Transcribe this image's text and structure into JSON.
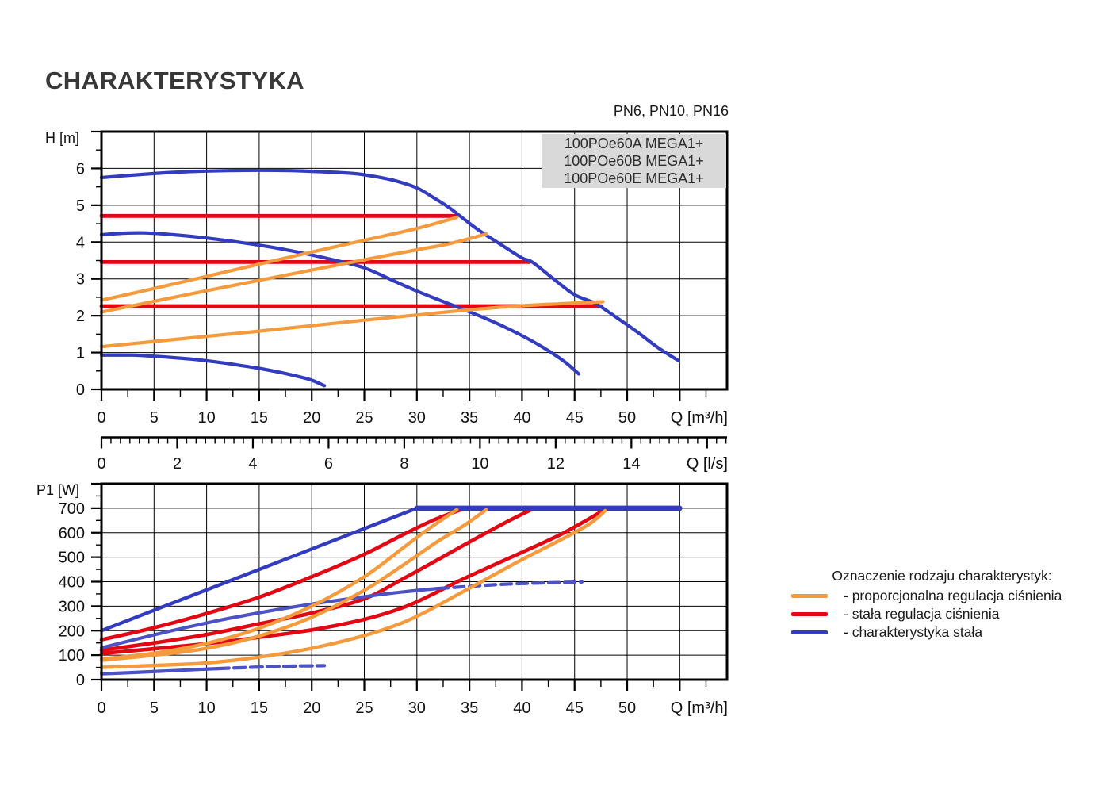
{
  "title": "CHARAKTERYSTYKA",
  "pn_note": "PN6, PN10, PN16",
  "models": [
    "100POe60A MEGA1+",
    "100POe60B MEGA1+",
    "100POe60E MEGA1+"
  ],
  "legend": {
    "title": "Oznaczenie rodzaju charakterystyk:",
    "items": [
      {
        "color_key": "orange",
        "label": "- proporcjonalna regulacja ciśnienia"
      },
      {
        "color_key": "red",
        "label": "- stała regulacja ciśnienia"
      },
      {
        "color_key": "blue",
        "label": "- charakterystyka stała"
      }
    ]
  },
  "colors": {
    "orange": "#F59B3E",
    "red": "#E30613",
    "blue": "#333CBE",
    "blue2": "#4C52C6",
    "box_bg": "#D9D9D9",
    "grid": "#000000",
    "text": "#111111"
  },
  "chart_data": [
    {
      "id": "head",
      "type": "line",
      "title": "",
      "ylabel": "H [m]",
      "xlabel": "Q [m³/h]",
      "x2label": "Q [l/s]",
      "xlim": [
        0,
        59.5
      ],
      "ylim": [
        0,
        7
      ],
      "grid": true,
      "xtick_step": 5,
      "xtick_labels": [
        0,
        5,
        10,
        15,
        20,
        25,
        30,
        35,
        40,
        45,
        50
      ],
      "ytick_labels": [
        0,
        1,
        2,
        3,
        4,
        5,
        6
      ],
      "ygrid_step": 1,
      "yminor_step": 0.5,
      "x2_factor": 3.6,
      "x2_tick_labels": [
        0,
        2,
        4,
        6,
        8,
        10,
        12,
        14
      ],
      "x2_major_max": 16,
      "x2_minor_step": 0.25,
      "x2_minor_max": 16.5,
      "series": [
        {
          "name": "stala-regulacja-cisnienia-1",
          "color": "red",
          "w": 4.8,
          "pts": [
            [
              0,
              4.71
            ],
            [
              33.8,
              4.71
            ]
          ]
        },
        {
          "name": "stala-regulacja-cisnienia-2",
          "color": "red",
          "w": 4.8,
          "pts": [
            [
              0,
              3.46
            ],
            [
              40.7,
              3.46
            ]
          ]
        },
        {
          "name": "stala-regulacja-cisnienia-3",
          "color": "red",
          "w": 4.8,
          "pts": [
            [
              0,
              2.26
            ],
            [
              47.5,
              2.26
            ]
          ]
        },
        {
          "name": "charakterystyka-stala-max",
          "color": "blue",
          "w": 4.2,
          "pts": [
            [
              0,
              5.75
            ],
            [
              3,
              5.82
            ],
            [
              6,
              5.88
            ],
            [
              9,
              5.92
            ],
            [
              12,
              5.94
            ],
            [
              15,
              5.95
            ],
            [
              18,
              5.94
            ],
            [
              21,
              5.91
            ],
            [
              24,
              5.86
            ],
            [
              26,
              5.78
            ],
            [
              28,
              5.66
            ],
            [
              30,
              5.47
            ],
            [
              31.5,
              5.22
            ],
            [
              33,
              4.95
            ],
            [
              34.5,
              4.62
            ],
            [
              36,
              4.3
            ],
            [
              38,
              3.93
            ],
            [
              40,
              3.57
            ],
            [
              41,
              3.45
            ],
            [
              43,
              3.0
            ],
            [
              45,
              2.57
            ],
            [
              47,
              2.33
            ],
            [
              49,
              1.95
            ],
            [
              51,
              1.55
            ],
            [
              53,
              1.12
            ],
            [
              54.9,
              0.78
            ]
          ]
        },
        {
          "name": "charakterystyka-stala-mid",
          "color": "blue",
          "w": 4.2,
          "pts": [
            [
              0,
              4.2
            ],
            [
              2,
              4.24
            ],
            [
              4,
              4.25
            ],
            [
              6,
              4.22
            ],
            [
              8,
              4.17
            ],
            [
              10,
              4.11
            ],
            [
              13,
              4.0
            ],
            [
              16,
              3.87
            ],
            [
              19,
              3.71
            ],
            [
              22,
              3.52
            ],
            [
              25,
              3.3
            ],
            [
              28,
              2.92
            ],
            [
              30,
              2.67
            ],
            [
              32,
              2.44
            ],
            [
              34,
              2.22
            ],
            [
              36,
              1.99
            ],
            [
              38,
              1.74
            ],
            [
              40,
              1.46
            ],
            [
              42,
              1.14
            ],
            [
              44,
              0.76
            ],
            [
              45.4,
              0.42
            ]
          ]
        },
        {
          "name": "charakterystyka-stala-min",
          "color": "blue",
          "w": 4.2,
          "pts": [
            [
              0,
              0.93
            ],
            [
              3,
              0.93
            ],
            [
              5,
              0.9
            ],
            [
              7,
              0.86
            ],
            [
              9,
              0.81
            ],
            [
              11,
              0.74
            ],
            [
              13,
              0.66
            ],
            [
              15,
              0.57
            ],
            [
              17,
              0.46
            ],
            [
              19,
              0.33
            ],
            [
              20,
              0.25
            ],
            [
              21.2,
              0.1
            ]
          ]
        },
        {
          "name": "proporcjonalna-regulacja-1",
          "color": "orange",
          "w": 4.2,
          "pts": [
            [
              0,
              2.42
            ],
            [
              5,
              2.74
            ],
            [
              10,
              3.07
            ],
            [
              15,
              3.4
            ],
            [
              20,
              3.73
            ],
            [
              25,
              4.05
            ],
            [
              30,
              4.37
            ],
            [
              33.8,
              4.67
            ]
          ]
        },
        {
          "name": "proporcjonalna-regulacja-2",
          "color": "orange",
          "w": 4.2,
          "pts": [
            [
              0,
              2.1
            ],
            [
              5,
              2.39
            ],
            [
              10,
              2.68
            ],
            [
              15,
              2.96
            ],
            [
              20,
              3.24
            ],
            [
              25,
              3.52
            ],
            [
              30,
              3.79
            ],
            [
              33,
              3.95
            ],
            [
              36.6,
              4.22
            ]
          ]
        },
        {
          "name": "proporcjonalna-regulacja-3",
          "color": "orange",
          "w": 4.2,
          "pts": [
            [
              0,
              1.16
            ],
            [
              5,
              1.3
            ],
            [
              10,
              1.44
            ],
            [
              15,
              1.58
            ],
            [
              20,
              1.73
            ],
            [
              25,
              1.88
            ],
            [
              30,
              2.02
            ],
            [
              35,
              2.16
            ],
            [
              40,
              2.27
            ],
            [
              44,
              2.33
            ],
            [
              47.7,
              2.38
            ]
          ]
        }
      ]
    },
    {
      "id": "power",
      "type": "line",
      "title": "",
      "ylabel": "P1 [W]",
      "xlabel": "Q [m³/h]",
      "xlim": [
        0,
        59.5
      ],
      "ylim": [
        0,
        800
      ],
      "grid": true,
      "xtick_step": 5,
      "xtick_labels": [
        0,
        5,
        10,
        15,
        20,
        25,
        30,
        35,
        40,
        45,
        50
      ],
      "ytick_labels": [
        0,
        100,
        200,
        300,
        400,
        500,
        600,
        700
      ],
      "ygrid_step": 100,
      "yminor_step": 50,
      "series": [
        {
          "name": "stala-regulacja-1-moc",
          "color": "red",
          "w": 4.6,
          "pts": [
            [
              0,
              163
            ],
            [
              5,
              212
            ],
            [
              10,
              270
            ],
            [
              15,
              337
            ],
            [
              20,
              420
            ],
            [
              25,
              512
            ],
            [
              28.6,
              590
            ],
            [
              31.5,
              650
            ],
            [
              34.3,
              696
            ]
          ]
        },
        {
          "name": "stala-regulacja-2-moc",
          "color": "red",
          "w": 4.6,
          "pts": [
            [
              0,
              120
            ],
            [
              5,
              150
            ],
            [
              10,
              184
            ],
            [
              15,
              228
            ],
            [
              20,
              272
            ],
            [
              25,
              330
            ],
            [
              28.6,
              410
            ],
            [
              32,
              490
            ],
            [
              35,
              562
            ],
            [
              38,
              632
            ],
            [
              41,
              697
            ]
          ]
        },
        {
          "name": "stala-regulacja-3-moc",
          "color": "red",
          "w": 4.6,
          "pts": [
            [
              0,
              107
            ],
            [
              5,
              126
            ],
            [
              10,
              147
            ],
            [
              15,
              173
            ],
            [
              20,
              203
            ],
            [
              25,
              246
            ],
            [
              28.6,
              293
            ],
            [
              31,
              338
            ],
            [
              34,
              403
            ],
            [
              37,
              462
            ],
            [
              40,
              520
            ],
            [
              44,
              600
            ],
            [
              48,
              697
            ]
          ]
        },
        {
          "name": "charakterystyka-max-moc",
          "color": "blue",
          "w": 4.4,
          "pts": [
            [
              0,
              200
            ],
            [
              30,
              700
            ]
          ]
        },
        {
          "name": "moc-maksymalna-ogranicznik",
          "color": "blue",
          "w": 6.6,
          "pts": [
            [
              30,
              700
            ],
            [
              55,
              700
            ]
          ]
        },
        {
          "name": "charakterystyka-mid-moc",
          "color": "blue2",
          "w": 4.2,
          "pts": [
            [
              0,
              130
            ],
            [
              3,
              162
            ],
            [
              6,
              193
            ],
            [
              9,
              222
            ],
            [
              12,
              249
            ],
            [
              15,
              273
            ],
            [
              18,
              295
            ],
            [
              21,
              315
            ],
            [
              24,
              333
            ],
            [
              27,
              350
            ],
            [
              30,
              364
            ],
            [
              32,
              372
            ]
          ]
        },
        {
          "name": "charakterystyka-mid-moc-dash",
          "color": "blue2",
          "w": 4.2,
          "dash": [
            13,
            7
          ],
          "pts": [
            [
              32,
              372
            ],
            [
              35,
              381
            ],
            [
              38,
              389
            ],
            [
              41,
              394
            ],
            [
              44,
              397
            ],
            [
              45.7,
              399
            ]
          ]
        },
        {
          "name": "charakterystyka-min-moc",
          "color": "blue2",
          "w": 4.2,
          "pts": [
            [
              0,
              24
            ],
            [
              3,
              29
            ],
            [
              6,
              35
            ],
            [
              9,
              41
            ],
            [
              11,
              45
            ]
          ]
        },
        {
          "name": "charakterystyka-min-moc-dash",
          "color": "blue2",
          "w": 4.2,
          "dash": [
            15,
            6
          ],
          "pts": [
            [
              11,
              45
            ],
            [
              14,
              50
            ],
            [
              17,
              54
            ],
            [
              19,
              56
            ],
            [
              21.2,
              57
            ]
          ]
        },
        {
          "name": "proporcjonalna-1-moc",
          "color": "orange",
          "w": 4.4,
          "pts": [
            [
              0,
              85
            ],
            [
              5,
              108
            ],
            [
              10,
              148
            ],
            [
              15,
              210
            ],
            [
              20,
              300
            ],
            [
              25,
              420
            ],
            [
              28.6,
              535
            ],
            [
              31,
              612
            ],
            [
              33.8,
              694
            ]
          ]
        },
        {
          "name": "proporcjonalna-2-moc",
          "color": "orange",
          "w": 4.4,
          "pts": [
            [
              0,
              79
            ],
            [
              5,
              100
            ],
            [
              10,
              128
            ],
            [
              15,
              178
            ],
            [
              20,
              255
            ],
            [
              25,
              365
            ],
            [
              28.6,
              465
            ],
            [
              32,
              565
            ],
            [
              34.5,
              630
            ],
            [
              36.6,
              694
            ]
          ]
        },
        {
          "name": "proporcjonalna-3-moc",
          "color": "orange",
          "w": 4.4,
          "pts": [
            [
              0,
              50
            ],
            [
              5,
              58
            ],
            [
              10,
              68
            ],
            [
              15,
              92
            ],
            [
              20,
              128
            ],
            [
              25,
              180
            ],
            [
              28.6,
              232
            ],
            [
              31,
              280
            ],
            [
              34,
              350
            ],
            [
              37,
              420
            ],
            [
              40,
              490
            ],
            [
              44,
              578
            ],
            [
              46.5,
              638
            ],
            [
              47.9,
              690
            ]
          ]
        }
      ]
    }
  ]
}
